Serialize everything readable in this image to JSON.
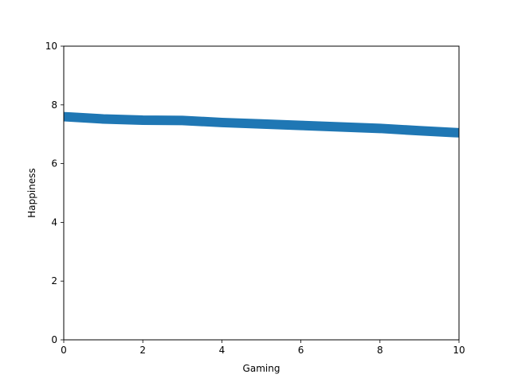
{
  "chart_data": {
    "type": "line",
    "title": "",
    "xlabel": "Gaming",
    "ylabel": "Happiness",
    "xlim": [
      0,
      10
    ],
    "ylim": [
      0,
      10
    ],
    "x_ticks": [
      0,
      2,
      4,
      6,
      8,
      10
    ],
    "y_ticks": [
      0,
      2,
      4,
      6,
      8,
      10
    ],
    "x_tick_labels": [
      "0",
      "2",
      "4",
      "6",
      "8",
      "10"
    ],
    "y_tick_labels": [
      "0",
      "2",
      "4",
      "6",
      "8",
      "10"
    ],
    "grid": false,
    "legend": "none",
    "series": [
      {
        "color": "#1f77b4",
        "x": [
          0,
          1,
          2,
          3,
          4,
          5,
          6,
          7,
          8,
          9,
          10
        ],
        "y": [
          7.6,
          7.52,
          7.48,
          7.47,
          7.4,
          7.35,
          7.3,
          7.25,
          7.2,
          7.12,
          7.05
        ]
      }
    ]
  }
}
